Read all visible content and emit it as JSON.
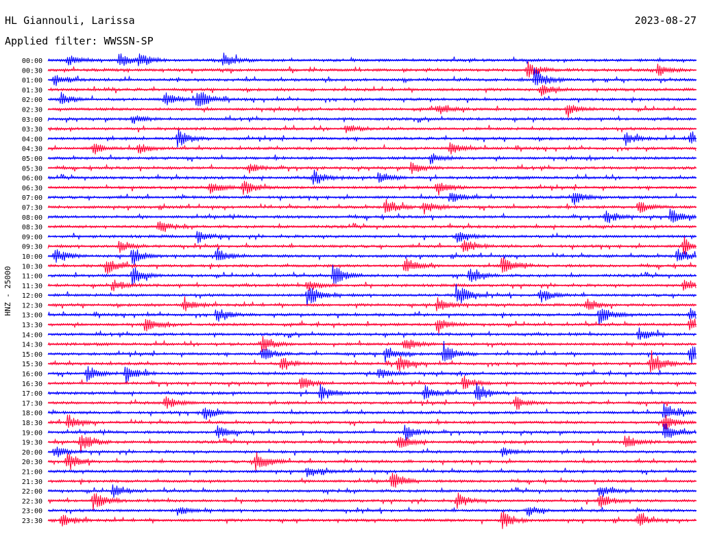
{
  "header": {
    "station": "HL Giannouli, Larissa",
    "date": "2023-08-27",
    "filter": "Applied filter: WWSSN-SP"
  },
  "colors": {
    "odd": "#0000ff",
    "even": "#ff0033",
    "background": "#ffffff",
    "text": "#000000"
  },
  "chart_data": {
    "type": "line",
    "title": "",
    "ylabel": "HNZ - 25000",
    "rows": [
      "00:00",
      "00:30",
      "01:00",
      "01:30",
      "02:00",
      "02:30",
      "03:00",
      "03:30",
      "04:00",
      "04:30",
      "05:00",
      "05:30",
      "06:00",
      "06:30",
      "07:00",
      "07:30",
      "08:00",
      "08:30",
      "09:00",
      "09:30",
      "10:00",
      "10:30",
      "11:00",
      "11:30",
      "12:00",
      "12:30",
      "13:00",
      "13:30",
      "14:00",
      "14:30",
      "15:00",
      "15:30",
      "16:00",
      "16:30",
      "17:00",
      "17:30",
      "18:00",
      "18:30",
      "19:00",
      "19:30",
      "20:00",
      "20:30",
      "21:00",
      "21:30",
      "22:00",
      "22:30",
      "23:00",
      "23:30"
    ],
    "row_duration_minutes": 30,
    "trace_colors": [
      "#0000ff",
      "#ff0033"
    ],
    "events": [
      {
        "row": "00:00",
        "t": 0.03,
        "amp": 0.8
      },
      {
        "row": "00:00",
        "t": 0.11,
        "amp": 0.9
      },
      {
        "row": "00:00",
        "t": 0.14,
        "amp": 1.0
      },
      {
        "row": "00:00",
        "t": 0.27,
        "amp": 1.0
      },
      {
        "row": "00:30",
        "t": 0.74,
        "amp": 1.2
      },
      {
        "row": "00:30",
        "t": 0.94,
        "amp": 0.9
      },
      {
        "row": "01:00",
        "t": 0.01,
        "amp": 0.9
      },
      {
        "row": "01:00",
        "t": 0.75,
        "amp": 1.6
      },
      {
        "row": "01:30",
        "t": 0.76,
        "amp": 0.8
      },
      {
        "row": "02:00",
        "t": 0.02,
        "amp": 0.9
      },
      {
        "row": "02:00",
        "t": 0.18,
        "amp": 1.0
      },
      {
        "row": "02:00",
        "t": 0.23,
        "amp": 1.6
      },
      {
        "row": "02:30",
        "t": 0.6,
        "amp": 0.8
      },
      {
        "row": "02:30",
        "t": 0.8,
        "amp": 0.9
      },
      {
        "row": "03:00",
        "t": 0.13,
        "amp": 0.6
      },
      {
        "row": "03:30",
        "t": 0.46,
        "amp": 0.6
      },
      {
        "row": "04:00",
        "t": 0.2,
        "amp": 1.4
      },
      {
        "row": "04:00",
        "t": 0.89,
        "amp": 0.9
      },
      {
        "row": "04:00",
        "t": 0.99,
        "amp": 1.1
      },
      {
        "row": "04:30",
        "t": 0.07,
        "amp": 0.8
      },
      {
        "row": "04:30",
        "t": 0.14,
        "amp": 0.7
      },
      {
        "row": "04:30",
        "t": 0.62,
        "amp": 0.8
      },
      {
        "row": "05:00",
        "t": 0.59,
        "amp": 0.8
      },
      {
        "row": "05:30",
        "t": 0.31,
        "amp": 0.7
      },
      {
        "row": "05:30",
        "t": 0.56,
        "amp": 0.8
      },
      {
        "row": "06:00",
        "t": 0.41,
        "amp": 1.1
      },
      {
        "row": "06:00",
        "t": 0.51,
        "amp": 0.9
      },
      {
        "row": "06:30",
        "t": 0.25,
        "amp": 1.0
      },
      {
        "row": "06:30",
        "t": 0.3,
        "amp": 1.3
      },
      {
        "row": "06:30",
        "t": 0.6,
        "amp": 1.1
      },
      {
        "row": "07:00",
        "t": 0.62,
        "amp": 0.9
      },
      {
        "row": "07:00",
        "t": 0.81,
        "amp": 1.0
      },
      {
        "row": "07:30",
        "t": 0.52,
        "amp": 1.3
      },
      {
        "row": "07:30",
        "t": 0.58,
        "amp": 0.9
      },
      {
        "row": "07:30",
        "t": 0.91,
        "amp": 0.9
      },
      {
        "row": "08:00",
        "t": 0.86,
        "amp": 1.0
      },
      {
        "row": "08:00",
        "t": 0.96,
        "amp": 1.2
      },
      {
        "row": "08:30",
        "t": 0.17,
        "amp": 0.8
      },
      {
        "row": "09:00",
        "t": 0.23,
        "amp": 0.9
      },
      {
        "row": "09:00",
        "t": 0.63,
        "amp": 0.9
      },
      {
        "row": "09:30",
        "t": 0.11,
        "amp": 0.9
      },
      {
        "row": "09:30",
        "t": 0.64,
        "amp": 1.0
      },
      {
        "row": "09:30",
        "t": 0.98,
        "amp": 1.3
      },
      {
        "row": "10:00",
        "t": 0.01,
        "amp": 1.1
      },
      {
        "row": "10:00",
        "t": 0.13,
        "amp": 1.2
      },
      {
        "row": "10:00",
        "t": 0.26,
        "amp": 1.0
      },
      {
        "row": "10:00",
        "t": 0.97,
        "amp": 1.2
      },
      {
        "row": "10:30",
        "t": 0.09,
        "amp": 1.2
      },
      {
        "row": "10:30",
        "t": 0.55,
        "amp": 1.3
      },
      {
        "row": "10:30",
        "t": 0.7,
        "amp": 1.2
      },
      {
        "row": "11:00",
        "t": 0.13,
        "amp": 1.4
      },
      {
        "row": "11:00",
        "t": 0.44,
        "amp": 1.5
      },
      {
        "row": "11:00",
        "t": 0.65,
        "amp": 1.1
      },
      {
        "row": "11:30",
        "t": 0.1,
        "amp": 0.8
      },
      {
        "row": "11:30",
        "t": 0.4,
        "amp": 0.9
      },
      {
        "row": "11:30",
        "t": 0.98,
        "amp": 1.0
      },
      {
        "row": "12:00",
        "t": 0.4,
        "amp": 1.6
      },
      {
        "row": "12:00",
        "t": 0.63,
        "amp": 1.7
      },
      {
        "row": "12:00",
        "t": 0.76,
        "amp": 1.0
      },
      {
        "row": "12:30",
        "t": 0.21,
        "amp": 1.1
      },
      {
        "row": "12:30",
        "t": 0.6,
        "amp": 1.0
      },
      {
        "row": "12:30",
        "t": 0.83,
        "amp": 1.0
      },
      {
        "row": "13:00",
        "t": 0.26,
        "amp": 1.0
      },
      {
        "row": "13:00",
        "t": 0.85,
        "amp": 1.4
      },
      {
        "row": "13:00",
        "t": 0.99,
        "amp": 1.1
      },
      {
        "row": "13:30",
        "t": 0.15,
        "amp": 0.9
      },
      {
        "row": "13:30",
        "t": 0.6,
        "amp": 1.0
      },
      {
        "row": "13:30",
        "t": 0.99,
        "amp": 1.2
      },
      {
        "row": "14:00",
        "t": 0.91,
        "amp": 1.1
      },
      {
        "row": "14:30",
        "t": 0.33,
        "amp": 1.3
      },
      {
        "row": "14:30",
        "t": 0.55,
        "amp": 0.9
      },
      {
        "row": "15:00",
        "t": 0.33,
        "amp": 1.0
      },
      {
        "row": "15:00",
        "t": 0.52,
        "amp": 1.2
      },
      {
        "row": "15:00",
        "t": 0.61,
        "amp": 1.6
      },
      {
        "row": "15:00",
        "t": 0.99,
        "amp": 1.4
      },
      {
        "row": "15:30",
        "t": 0.36,
        "amp": 1.0
      },
      {
        "row": "15:30",
        "t": 0.54,
        "amp": 1.1
      },
      {
        "row": "15:30",
        "t": 0.93,
        "amp": 1.8
      },
      {
        "row": "16:00",
        "t": 0.06,
        "amp": 1.0
      },
      {
        "row": "16:00",
        "t": 0.12,
        "amp": 1.2
      },
      {
        "row": "16:00",
        "t": 0.51,
        "amp": 0.8
      },
      {
        "row": "16:30",
        "t": 0.39,
        "amp": 0.9
      },
      {
        "row": "16:30",
        "t": 0.64,
        "amp": 1.0
      },
      {
        "row": "17:00",
        "t": 0.42,
        "amp": 1.1
      },
      {
        "row": "17:00",
        "t": 0.58,
        "amp": 1.1
      },
      {
        "row": "17:00",
        "t": 0.66,
        "amp": 1.4
      },
      {
        "row": "17:30",
        "t": 0.18,
        "amp": 1.0
      },
      {
        "row": "17:30",
        "t": 0.72,
        "amp": 0.9
      },
      {
        "row": "18:00",
        "t": 0.24,
        "amp": 1.1
      },
      {
        "row": "18:00",
        "t": 0.95,
        "amp": 1.3
      },
      {
        "row": "18:30",
        "t": 0.03,
        "amp": 1.0
      },
      {
        "row": "18:30",
        "t": 0.95,
        "amp": 1.1
      },
      {
        "row": "19:00",
        "t": 0.26,
        "amp": 0.9
      },
      {
        "row": "19:00",
        "t": 0.55,
        "amp": 1.1
      },
      {
        "row": "19:00",
        "t": 0.95,
        "amp": 1.3
      },
      {
        "row": "19:30",
        "t": 0.05,
        "amp": 1.6
      },
      {
        "row": "19:30",
        "t": 0.54,
        "amp": 1.1
      },
      {
        "row": "19:30",
        "t": 0.89,
        "amp": 1.0
      },
      {
        "row": "20:00",
        "t": 0.01,
        "amp": 0.9
      },
      {
        "row": "20:00",
        "t": 0.7,
        "amp": 0.7
      },
      {
        "row": "20:30",
        "t": 0.32,
        "amp": 1.6
      },
      {
        "row": "20:30",
        "t": 0.03,
        "amp": 1.1
      },
      {
        "row": "21:00",
        "t": 0.4,
        "amp": 0.8
      },
      {
        "row": "21:30",
        "t": 0.53,
        "amp": 1.4
      },
      {
        "row": "22:00",
        "t": 0.1,
        "amp": 0.9
      },
      {
        "row": "22:00",
        "t": 0.85,
        "amp": 0.9
      },
      {
        "row": "22:30",
        "t": 0.07,
        "amp": 1.3
      },
      {
        "row": "22:30",
        "t": 0.63,
        "amp": 1.1
      },
      {
        "row": "22:30",
        "t": 0.85,
        "amp": 1.1
      },
      {
        "row": "23:00",
        "t": 0.2,
        "amp": 0.6
      },
      {
        "row": "23:00",
        "t": 0.74,
        "amp": 0.7
      },
      {
        "row": "23:30",
        "t": 0.02,
        "amp": 1.2
      },
      {
        "row": "23:30",
        "t": 0.7,
        "amp": 1.3
      },
      {
        "row": "23:30",
        "t": 0.91,
        "amp": 1.0
      }
    ]
  }
}
